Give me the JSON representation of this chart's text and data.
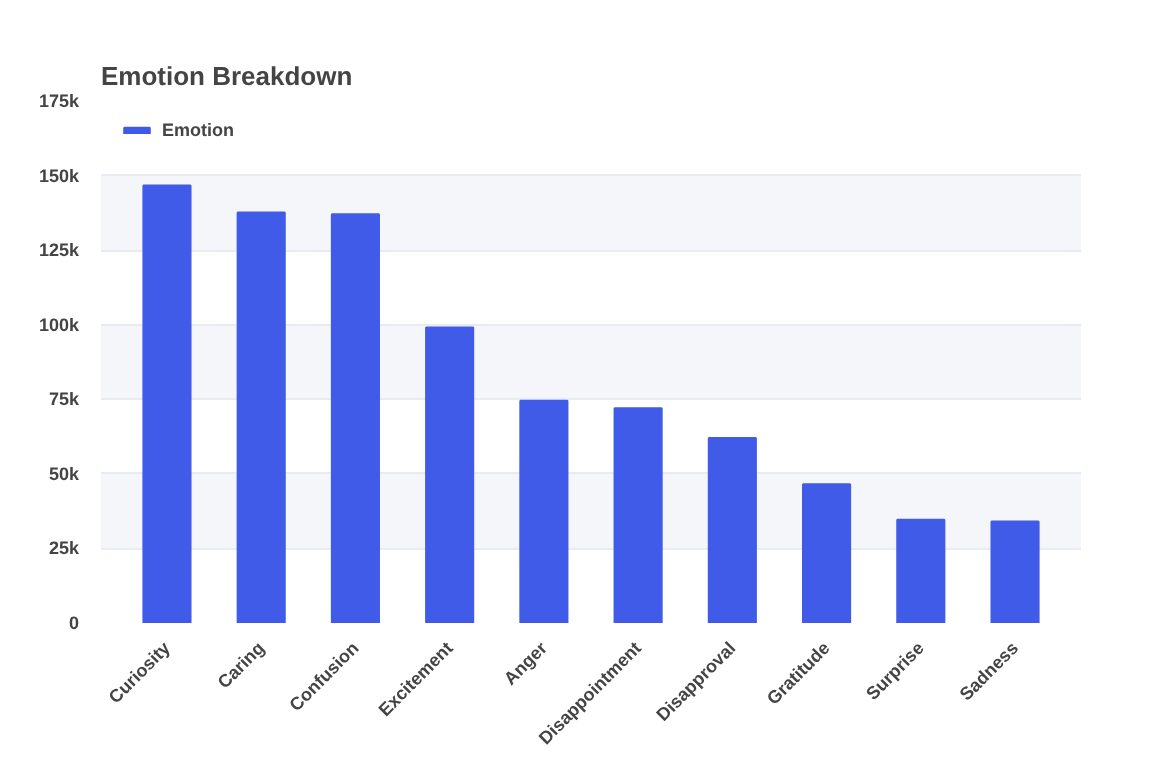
{
  "chart_data": {
    "type": "bar",
    "title": "Emotion Breakdown",
    "categories": [
      "Curiosity",
      "Caring",
      "Confusion",
      "Excitement",
      "Anger",
      "Disappointment",
      "Disapproval",
      "Gratitude",
      "Surprise",
      "Sadness"
    ],
    "series": [
      {
        "name": "Emotion",
        "color": "#405be8",
        "values": [
          146700,
          137600,
          137000,
          99100,
          74500,
          72000,
          62000,
          46500,
          34600,
          34000
        ]
      }
    ],
    "ylim": [
      0,
      175000
    ],
    "yticks": [
      {
        "value": 0,
        "label": "0"
      },
      {
        "value": 25000,
        "label": "25k"
      },
      {
        "value": 50000,
        "label": "50k"
      },
      {
        "value": 75000,
        "label": "75k"
      },
      {
        "value": 100000,
        "label": "100k"
      },
      {
        "value": 125000,
        "label": "125k"
      },
      {
        "value": 150000,
        "label": "150k"
      },
      {
        "value": 175000,
        "label": "175k"
      }
    ],
    "grid": "y",
    "legend": "top left"
  }
}
